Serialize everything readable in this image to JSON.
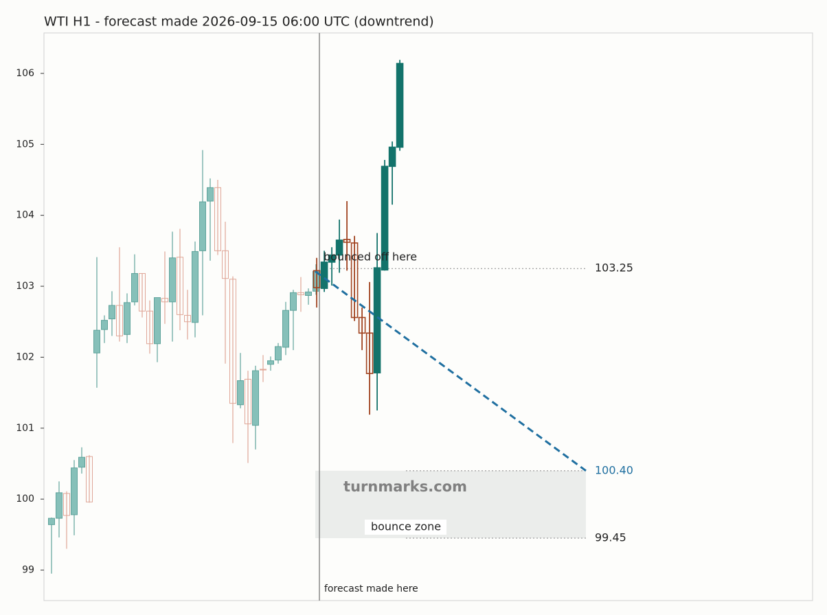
{
  "chart_data": {
    "type": "candlestick",
    "title": "WTI H1 - forecast made 2026-09-15 06:00 UTC (downtrend)",
    "ylim": [
      98.57,
      106.57
    ],
    "yticks": [
      99,
      100,
      101,
      102,
      103,
      104,
      105,
      106
    ],
    "history": {
      "open": [
        99.64,
        99.73,
        100.08,
        99.78,
        100.45,
        100.6,
        102.06,
        102.39,
        102.54,
        102.73,
        102.32,
        102.78,
        103.18,
        102.65,
        102.19,
        102.83,
        102.78,
        103.41,
        102.59,
        102.49,
        103.5,
        104.2,
        104.39,
        103.5,
        103.1,
        101.33,
        101.69,
        101.04,
        101.83,
        101.9,
        101.96,
        102.14,
        102.66,
        102.91,
        102.87,
        102.93
      ],
      "high": [
        99.74,
        100.25,
        100.11,
        100.55,
        100.73,
        100.62,
        103.41,
        102.59,
        102.93,
        103.55,
        102.9,
        103.45,
        103.18,
        102.8,
        102.84,
        103.49,
        103.77,
        103.81,
        102.95,
        103.63,
        104.92,
        104.52,
        104.5,
        103.91,
        103.14,
        102.06,
        101.81,
        101.88,
        102.03,
        102.01,
        102.2,
        102.78,
        102.95,
        103.13,
        102.97,
        103.31
      ],
      "low": [
        98.95,
        99.46,
        99.3,
        99.49,
        100.36,
        99.95,
        101.57,
        102.2,
        102.3,
        102.22,
        102.2,
        102.73,
        102.56,
        102.05,
        101.93,
        102.47,
        102.22,
        102.38,
        102.25,
        102.28,
        102.59,
        103.36,
        103.44,
        101.91,
        100.79,
        101.28,
        100.51,
        100.7,
        101.65,
        101.81,
        101.91,
        102.03,
        102.1,
        102.64,
        102.74,
        102.88
      ],
      "close": [
        99.73,
        100.09,
        99.77,
        100.44,
        100.59,
        99.96,
        102.38,
        102.52,
        102.73,
        102.3,
        102.77,
        103.18,
        102.65,
        102.19,
        102.84,
        102.78,
        103.4,
        102.6,
        102.5,
        103.49,
        104.19,
        104.39,
        103.5,
        103.11,
        101.35,
        101.67,
        101.06,
        101.81,
        101.82,
        101.95,
        102.15,
        102.66,
        102.91,
        102.88,
        102.92,
        103.21
      ],
      "up_color": "#86c0b9",
      "up_edge": "#5fa39b",
      "down_edge": "#dfa596"
    },
    "forecast": {
      "open": [
        103.22,
        102.97,
        103.34,
        103.44,
        103.66,
        103.61,
        102.56,
        102.34,
        101.78,
        103.23,
        104.69,
        104.96
      ],
      "high": [
        103.4,
        103.5,
        103.55,
        103.94,
        104.2,
        103.71,
        102.7,
        103.06,
        103.75,
        104.78,
        105.04,
        106.19
      ],
      "low": [
        102.7,
        102.92,
        103.01,
        103.19,
        103.22,
        102.51,
        102.1,
        101.19,
        101.25,
        103.22,
        104.15,
        104.91
      ],
      "close": [
        102.98,
        103.34,
        103.44,
        103.65,
        103.62,
        102.56,
        102.34,
        101.77,
        103.26,
        104.69,
        104.96,
        106.14
      ],
      "up_color": "#13736b",
      "up_edge": "#13736b",
      "down_edge": "#a0421f"
    },
    "levels": [
      103.25,
      {
        "value": 100.4,
        "label": "100.40"
      },
      99.45
    ],
    "trend_start": 103.21,
    "target_color": "#1f6fa0",
    "annotations": {
      "bounce": "bounced off here",
      "zone": "bounce zone",
      "forecast": "forecast made here",
      "watermark": "turnmarks.com"
    }
  }
}
